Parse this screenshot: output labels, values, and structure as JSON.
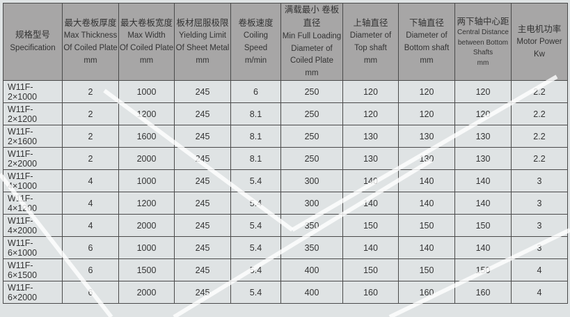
{
  "headers": [
    {
      "zh": "规格型号",
      "en": [
        "Specification"
      ]
    },
    {
      "zh": "最大卷板厚度",
      "en": [
        "Max Thickness",
        "Of Coiled Plate",
        "mm"
      ]
    },
    {
      "zh": "最大卷板宽度",
      "en": [
        "Max Width",
        "Of Coiled Plate",
        "mm"
      ]
    },
    {
      "zh": "板材屈服极限",
      "en": [
        "Yielding Limit",
        "Of Sheet Metal",
        "mm"
      ]
    },
    {
      "zh": "卷板速度",
      "en": [
        "Coiling Speed",
        "m/min"
      ]
    },
    {
      "zh": "满载最小 卷板直径",
      "en": [
        "Min Full Loading",
        "Diameter of",
        "Coiled Plate",
        "mm"
      ]
    },
    {
      "zh": "上轴直径",
      "en": [
        "Diameter of",
        "Top shaft",
        "mm"
      ]
    },
    {
      "zh": "下轴直径",
      "en": [
        "Diameter of",
        "Bottom shaft",
        "mm"
      ]
    },
    {
      "zh": "两下轴中心距",
      "en": [
        "Central  Distance",
        "between Bottom",
        "Shafts",
        "mm"
      ]
    },
    {
      "zh": "主电机功率",
      "en": [
        "Motor Power",
        "Kw"
      ]
    }
  ],
  "rows": [
    [
      "W11F-2×1000",
      "2",
      "1000",
      "245",
      "6",
      "250",
      "120",
      "120",
      "120",
      "2.2"
    ],
    [
      "W11F-2×1200",
      "2",
      "1200",
      "245",
      "8.1",
      "250",
      "120",
      "120",
      "120",
      "2.2"
    ],
    [
      "W11F-2×1600",
      "2",
      "1600",
      "245",
      "8.1",
      "250",
      "130",
      "130",
      "130",
      "2.2"
    ],
    [
      "W11F-2×2000",
      "2",
      "2000",
      "245",
      "8.1",
      "250",
      "130",
      "130",
      "130",
      "2.2"
    ],
    [
      "W11F-4×1000",
      "4",
      "1000",
      "245",
      "5.4",
      "300",
      "140",
      "140",
      "140",
      "3"
    ],
    [
      "W11F-4×1200",
      "4",
      "1200",
      "245",
      "5.4",
      "300",
      "140",
      "140",
      "140",
      "3"
    ],
    [
      "W11F-4×2000",
      "4",
      "2000",
      "245",
      "5.4",
      "350",
      "150",
      "150",
      "150",
      "3"
    ],
    [
      "W11F-6×1000",
      "6",
      "1000",
      "245",
      "5.4",
      "350",
      "140",
      "140",
      "140",
      "3"
    ],
    [
      "W11F-6×1500",
      "6",
      "1500",
      "245",
      "5.4",
      "400",
      "150",
      "150",
      "150",
      "4"
    ],
    [
      "W11F-6×2000",
      "6",
      "2000",
      "245",
      "5.4",
      "400",
      "160",
      "160",
      "160",
      "4"
    ]
  ]
}
